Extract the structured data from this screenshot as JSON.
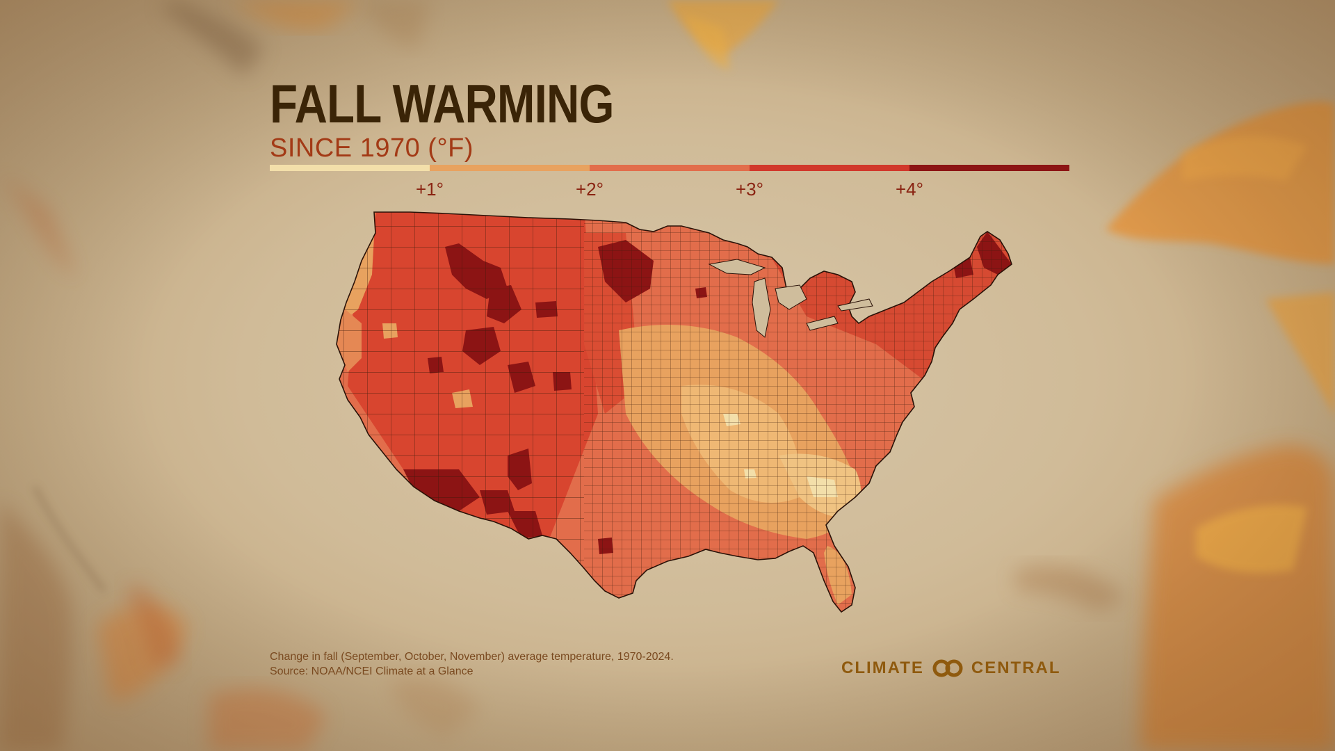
{
  "title": "FALL WARMING",
  "subtitle": "SINCE 1970 (°F)",
  "legend": {
    "colors": [
      "#f3dfaa",
      "#e8a25f",
      "#e26d4b",
      "#d1382b",
      "#8c1414"
    ],
    "labels": [
      "+1°",
      "+2°",
      "+3°",
      "+4°"
    ]
  },
  "map": {
    "region": "Contiguous United States, by county",
    "fill_colors": {
      "lt1": "#f3dfaa",
      "1to2": "#e8a25f",
      "2to3": "#e26d4b",
      "3to4": "#d1382b",
      "gt4": "#8c1414"
    },
    "border_color": "#3a1a0a"
  },
  "footnote": {
    "line1": "Change in fall (September, October, November) average temperature, 1970-2024.",
    "line2": "Source: NOAA/NCEI Climate at a Glance"
  },
  "logo": {
    "left_text": "CLIMATE",
    "right_text": "CENTRAL"
  }
}
